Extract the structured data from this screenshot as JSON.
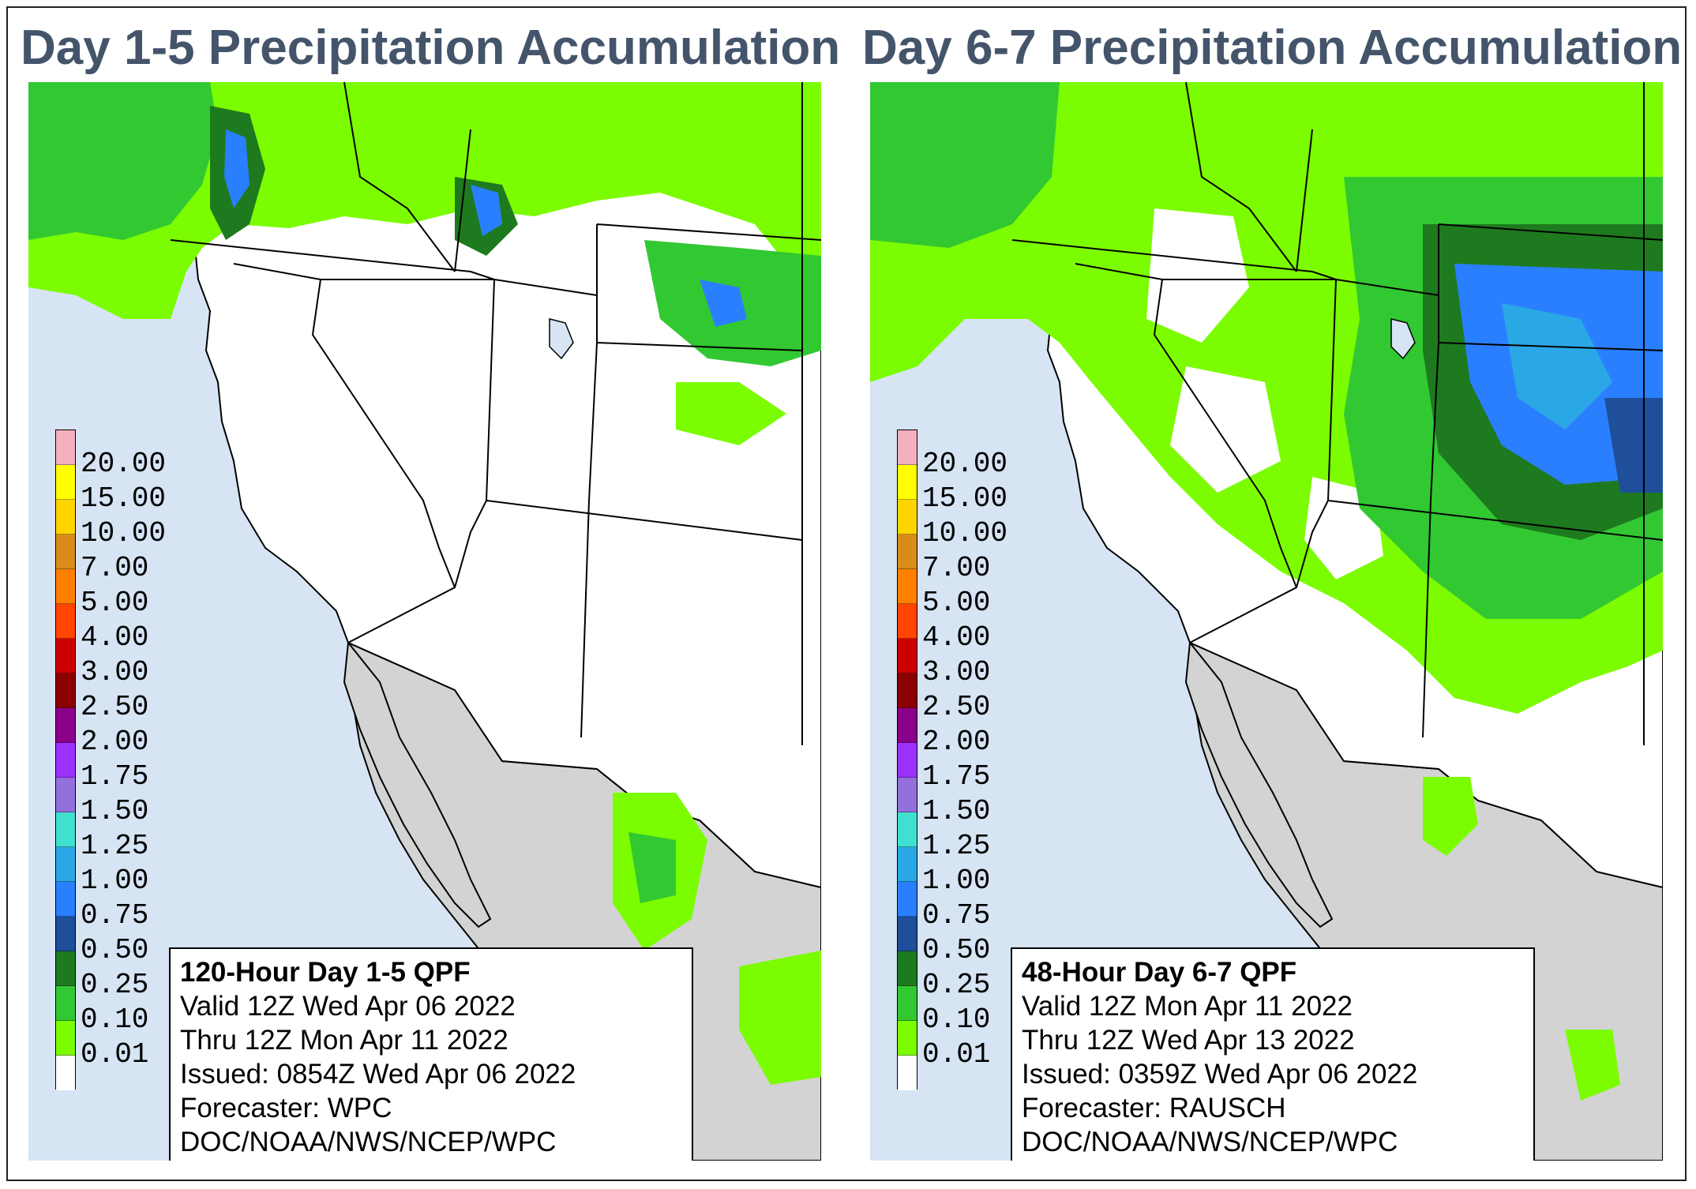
{
  "colors": {
    "ocean": "#d6e4f4",
    "mexico": "#d3d3d3",
    "land": "#ffffff",
    "border": "#000000",
    "title_text": "#44546a"
  },
  "legend": {
    "labels": [
      "20.00",
      "15.00",
      "10.00",
      "7.00",
      "5.00",
      "4.00",
      "3.00",
      "2.50",
      "2.00",
      "1.75",
      "1.50",
      "1.25",
      "1.00",
      "0.75",
      "0.50",
      "0.25",
      "0.10",
      "0.01"
    ],
    "swatch_colors": [
      "#f5b0c0",
      "#ffff00",
      "#ffd500",
      "#d98c1a",
      "#ff7f00",
      "#ff4500",
      "#cc0000",
      "#8b0000",
      "#8b008b",
      "#9b30ff",
      "#9370db",
      "#40e0d0",
      "#2aa8e6",
      "#2a7fff",
      "#1f4e9a",
      "#1e7a1e",
      "#32c832",
      "#7cfc00",
      "#ffffff"
    ]
  },
  "panels": [
    {
      "title": "Day 1-5 Precipitation Accumulation",
      "info": {
        "title": "120-Hour Day 1-5 QPF",
        "valid": "Valid 12Z Wed Apr 06 2022",
        "thru": "Thru 12Z Mon Apr 11 2022",
        "issued": "Issued: 0854Z Wed Apr 06 2022",
        "forecaster": "Forecaster: WPC",
        "agency": "DOC/NOAA/NWS/NCEP/WPC"
      }
    },
    {
      "title": "Day 6-7 Precipitation Accumulation",
      "info": {
        "title": "48-Hour Day 6-7 QPF",
        "valid": "Valid 12Z Mon Apr 11 2022",
        "thru": "Thru 12Z Wed Apr 13 2022",
        "issued": "Issued: 0359Z Wed Apr 06 2022",
        "forecaster": "Forecaster: RAUSCH",
        "agency": "DOC/NOAA/NWS/NCEP/WPC"
      }
    }
  ]
}
